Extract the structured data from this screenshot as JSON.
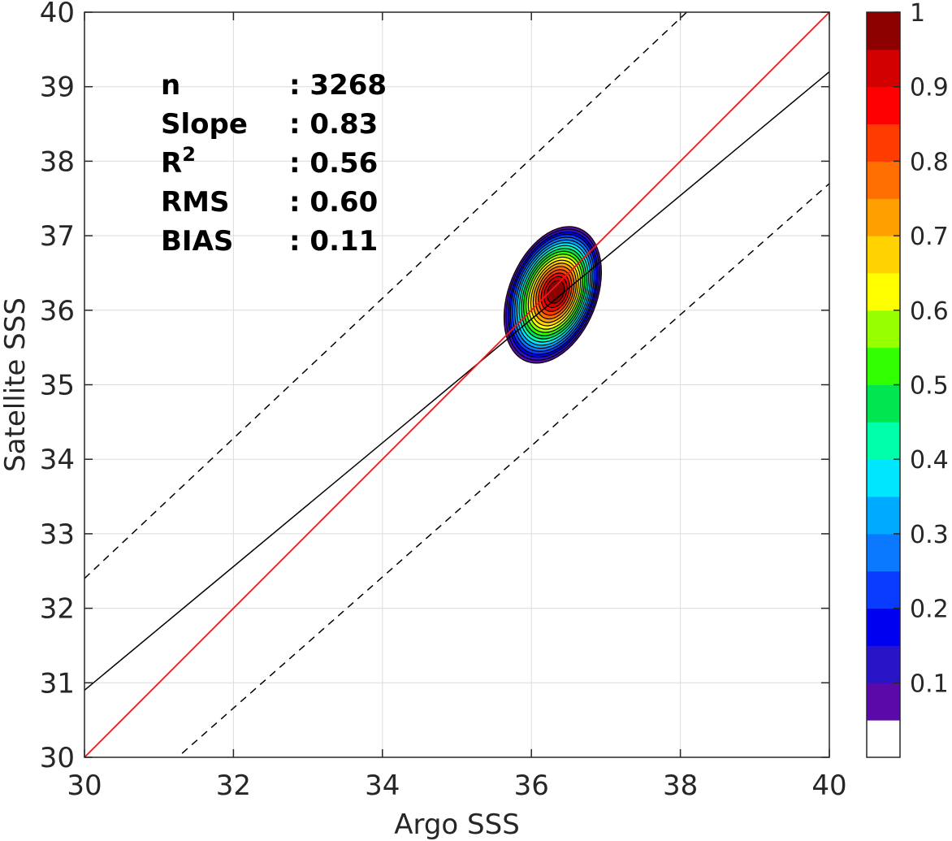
{
  "chart_data": {
    "type": "contour-scatter",
    "xlabel": "Argo SSS",
    "ylabel": "Satellite SSS",
    "xlim": [
      30,
      40
    ],
    "ylim": [
      30,
      40
    ],
    "x_ticks": [
      "30",
      "32",
      "34",
      "36",
      "38",
      "40"
    ],
    "y_ticks": [
      "30",
      "31",
      "32",
      "33",
      "34",
      "35",
      "36",
      "37",
      "38",
      "39",
      "40"
    ],
    "grid": true,
    "stats": [
      {
        "label": "n",
        "value": ": 3268"
      },
      {
        "label": "Slope",
        "value": ": 0.83"
      },
      {
        "label": "R",
        "sup": "2",
        "value": ": 0.56"
      },
      {
        "label": "RMS",
        "value": ": 0.60"
      },
      {
        "label": "BIAS",
        "value": ": 0.11"
      }
    ],
    "lines": {
      "one_to_one": {
        "slope": 1,
        "intercept": 0,
        "color": "#e41a1c"
      },
      "regression": {
        "slope": 0.83,
        "at_x30": 30.9,
        "at_x40": 39.2,
        "color": "#000000"
      },
      "upper_bound": {
        "at_x30": 32.4,
        "at_x40": 41.8,
        "style": "dashed"
      },
      "lower_bound": {
        "at_x30": 28.9,
        "at_x40": 37.7,
        "style": "dashed"
      }
    },
    "density_peak": {
      "x": 36.33,
      "y": 36.25
    },
    "density_contour_levels": [
      0.05,
      0.1,
      0.15,
      0.2,
      0.25,
      0.3,
      0.35,
      0.4,
      0.45,
      0.5,
      0.55,
      0.6,
      0.65,
      0.7,
      0.75,
      0.8,
      0.85,
      0.9,
      0.95
    ],
    "colorbar": {
      "range": [
        0,
        1
      ],
      "ticks": [
        "0.1",
        "0.2",
        "0.3",
        "0.4",
        "0.5",
        "0.6",
        "0.7",
        "0.8",
        "0.9",
        "1"
      ],
      "colors": [
        "#ffffff",
        "#5a0aa8",
        "#2a14c8",
        "#0000f0",
        "#0a3cff",
        "#0a78ff",
        "#00aaff",
        "#00e6ff",
        "#00ffaa",
        "#00e650",
        "#32ff00",
        "#96ff00",
        "#ffff00",
        "#ffd200",
        "#ffa000",
        "#ff6e00",
        "#ff3c00",
        "#ff0000",
        "#d20000",
        "#8c0000"
      ]
    }
  }
}
